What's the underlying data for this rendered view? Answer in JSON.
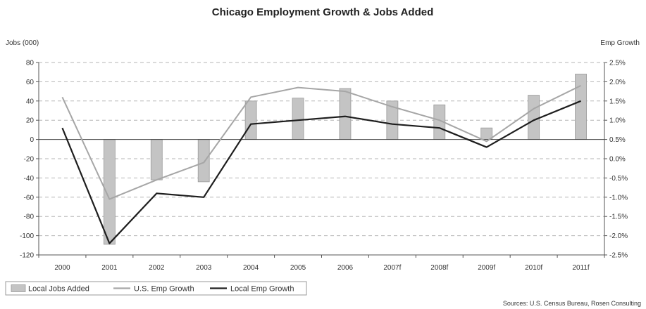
{
  "chart_data": {
    "type": "bar",
    "title": "Chicago Employment Growth & Jobs Added",
    "categories": [
      "2000",
      "2001",
      "2002",
      "2003",
      "2004",
      "2005",
      "2006",
      "2007f",
      "2008f",
      "2009f",
      "2010f",
      "2011f"
    ],
    "left_axis": {
      "label": "Jobs (000)",
      "ylim": [
        -120,
        80
      ],
      "ticks": [
        "80",
        "60",
        "40",
        "20",
        "0",
        "-20",
        "-40",
        "-60",
        "-80",
        "-100",
        "-120"
      ]
    },
    "right_axis": {
      "label": "Emp Growth",
      "ylim": [
        -2.5,
        2.5
      ],
      "ticks": [
        "2.5%",
        "2.0%",
        "1.5%",
        "1.0%",
        "0.5%",
        "0.0%",
        "-0.5%",
        "-1.0%",
        "-1.5%",
        "-2.0%",
        "-2.5%"
      ]
    },
    "grid": "horizontal-dashed",
    "legend_position": "bottom-left",
    "series": [
      {
        "name": "Local Jobs Added",
        "kind": "bar",
        "axis": "left",
        "color": "#c4c4c4",
        "values": [
          0,
          -109,
          -42,
          -44,
          40,
          43,
          53,
          40,
          36,
          12,
          46,
          68
        ]
      },
      {
        "name": "U.S. Emp Growth",
        "kind": "line",
        "axis": "right",
        "color": "#a6a6a6",
        "values": [
          1.6,
          -1.05,
          -0.55,
          -0.1,
          1.6,
          1.85,
          1.75,
          1.35,
          1.0,
          0.45,
          1.3,
          1.9
        ]
      },
      {
        "name": "Local Emp Growth",
        "kind": "line",
        "axis": "right",
        "color": "#1e1e1e",
        "values": [
          0.8,
          -2.2,
          -0.9,
          -1.0,
          0.9,
          1.0,
          1.1,
          0.9,
          0.8,
          0.3,
          1.0,
          1.5
        ]
      }
    ],
    "source": "Sources: U.S. Census Bureau, Rosen Consulting"
  }
}
